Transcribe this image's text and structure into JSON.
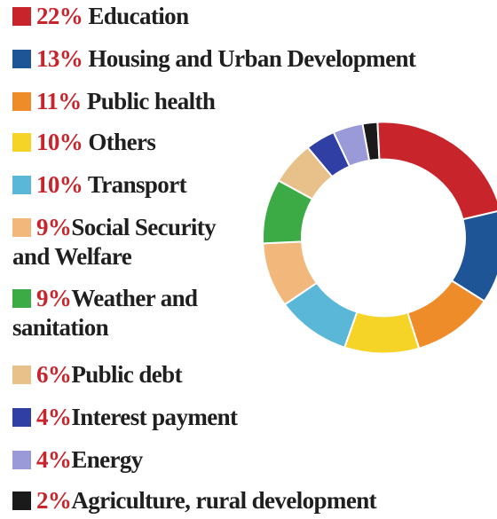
{
  "chart_data": {
    "type": "pie",
    "variant": "donut",
    "legend_placement": "left",
    "slices": [
      {
        "value": 22,
        "pct_label": "22%",
        "label": "Education",
        "color": "#c8242b"
      },
      {
        "value": 13,
        "pct_label": "13%",
        "label": "Housing and Urban Development",
        "color": "#1e5596"
      },
      {
        "value": 11,
        "pct_label": "11%",
        "label": "Public health",
        "color": "#ef8c2a"
      },
      {
        "value": 10,
        "pct_label": "10%",
        "label": "Others",
        "color": "#f5d327"
      },
      {
        "value": 10,
        "pct_label": "10%",
        "label": "Transport",
        "color": "#5ab7d8"
      },
      {
        "value": 9,
        "pct_label": "9%",
        "label": "Social Security",
        "label_line2": "and Welfare",
        "color": "#f2b77a"
      },
      {
        "value": 9,
        "pct_label": "9%",
        "label": "Weather and",
        "label_line2": "sanitation",
        "color": "#3caa45"
      },
      {
        "value": 6,
        "pct_label": "6%",
        "label": "Public debt",
        "color": "#e8c08a"
      },
      {
        "value": 4,
        "pct_label": "4%",
        "label": "Interest payment",
        "color": "#2f3fa3"
      },
      {
        "value": 4,
        "pct_label": "4%",
        "label": "Energy",
        "color": "#9a9ad8"
      },
      {
        "value": 2,
        "pct_label": "2%",
        "label": "Agriculture, rural development",
        "color": "#1a1a1a"
      }
    ]
  }
}
